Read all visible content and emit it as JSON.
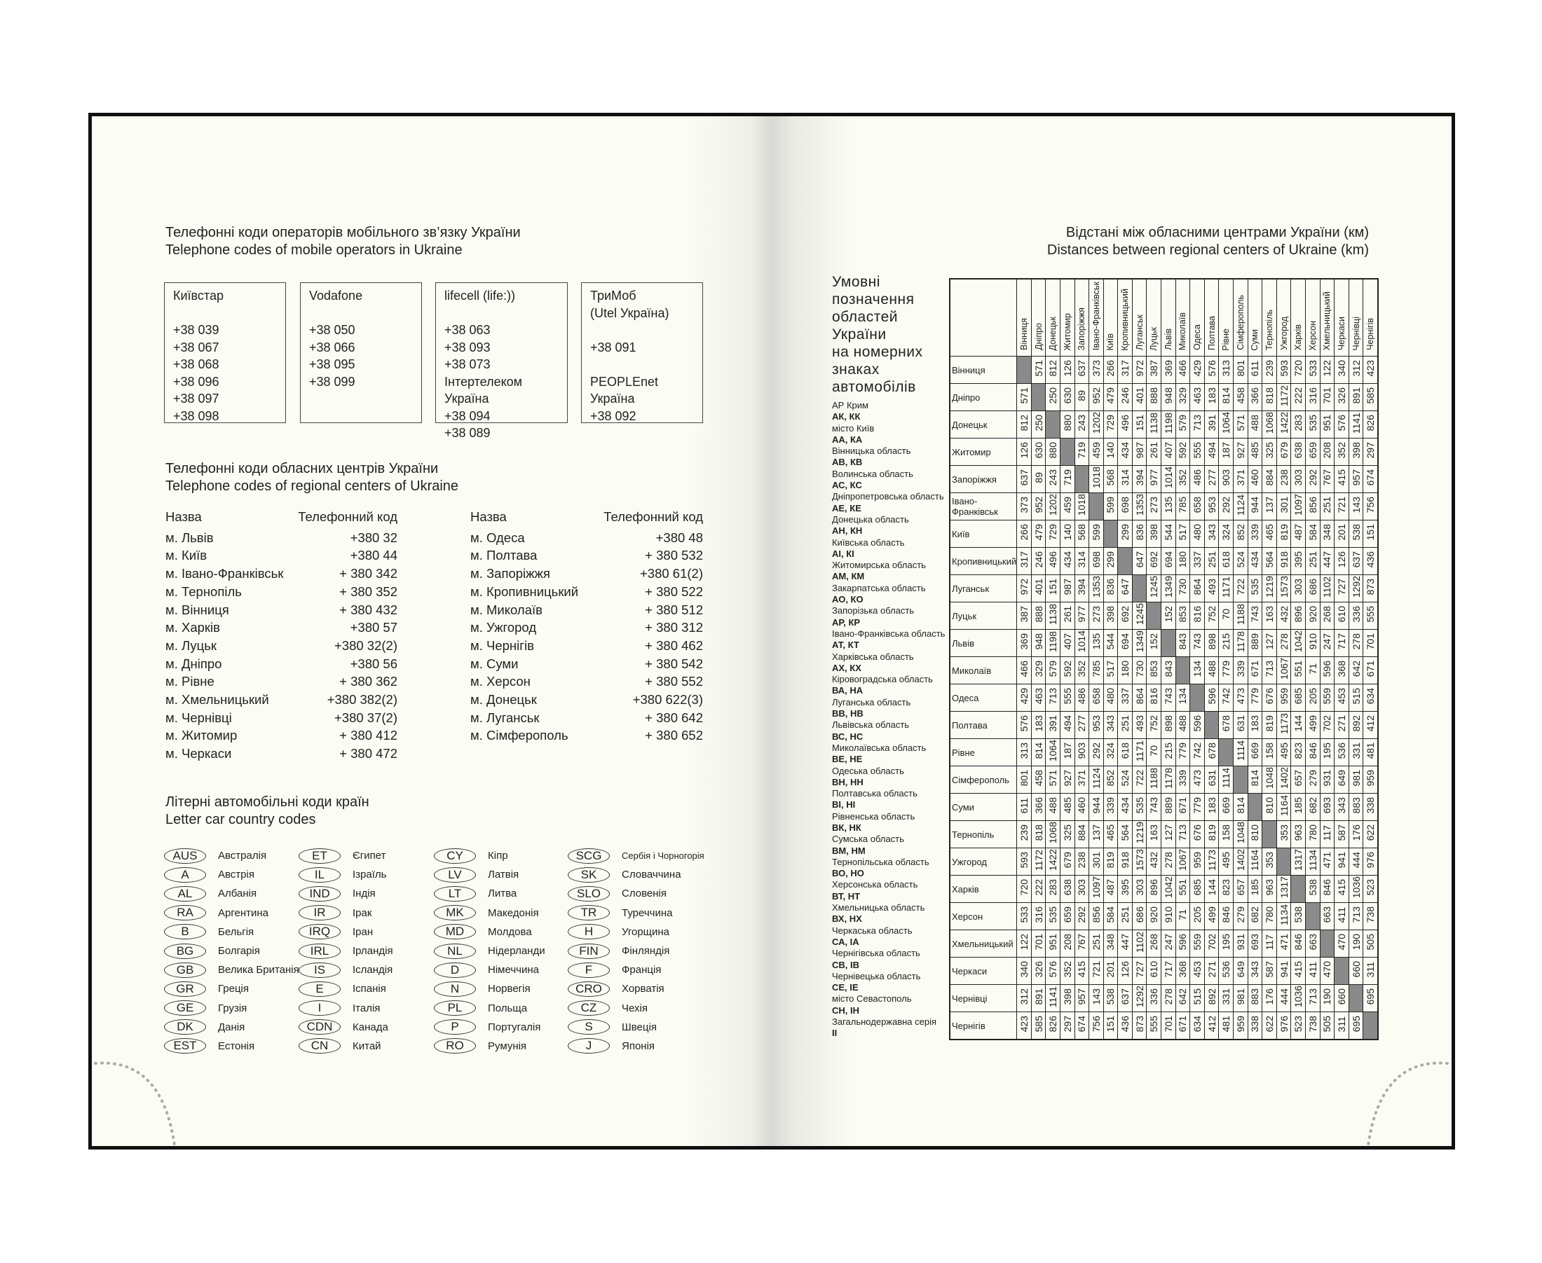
{
  "left": {
    "mobile_title_ua": "Телефонні коди операторів мобільного зв’язку України",
    "mobile_title_en": "Telephone codes of mobile operators in Ukraine",
    "operators": [
      {
        "lines": [
          "Київстар",
          "",
          "+38 039",
          "+38 067",
          "+38 068",
          "+38 096",
          "+38 097",
          "+38 098"
        ]
      },
      {
        "lines": [
          "Vodafone",
          "",
          "+38 050",
          "+38 066",
          "+38 095",
          "+38 099"
        ]
      },
      {
        "lines": [
          "lifecell (life:))",
          "",
          "+38 063",
          "+38 093",
          "+38 073",
          "Інтертелеком Україна",
          "+38 094",
          "+38 089"
        ]
      },
      {
        "lines": [
          "ТриМоб",
          "(Utel Україна)",
          "",
          "+38 091",
          "",
          "PEOPLEnet",
          "Україна",
          "+38 092"
        ]
      }
    ],
    "regional_title_ua": "Телефонні коди обласних центрів України",
    "regional_title_en": "Telephone codes of regional centers of Ukraine",
    "regional_header": {
      "name": "Назва",
      "code": "Телефонний код"
    },
    "regional_left": [
      [
        "м. Львів",
        "+380 32"
      ],
      [
        "м. Київ",
        "+380 44"
      ],
      [
        "м. Івано-Франківськ",
        "+ 380 342"
      ],
      [
        "м. Тернопіль",
        "+ 380 352"
      ],
      [
        "м. Вінниця",
        "+ 380 432"
      ],
      [
        "м. Харків",
        "+380 57"
      ],
      [
        "м. Луцьк",
        "+380 32(2)"
      ],
      [
        "м. Дніпро",
        "+380 56"
      ],
      [
        "м. Рівне",
        "+ 380 362"
      ],
      [
        "м. Хмельницький",
        "+380 382(2)"
      ],
      [
        "м. Чернівці",
        "+380 37(2)"
      ],
      [
        "м. Житомир",
        "+ 380 412"
      ],
      [
        "м. Черкаси",
        "+ 380 472"
      ]
    ],
    "regional_right": [
      [
        "м. Одеса",
        "+380 48"
      ],
      [
        "м. Полтава",
        "+ 380 532"
      ],
      [
        "м. Запоріжжя",
        "+380 61(2)"
      ],
      [
        "м. Кропивницький",
        "+ 380 522"
      ],
      [
        "м. Миколаїв",
        "+ 380 512"
      ],
      [
        "м. Ужгород",
        "+ 380 312"
      ],
      [
        "м. Чернігів",
        "+ 380 462"
      ],
      [
        "м. Суми",
        "+ 380 542"
      ],
      [
        "м. Херсон",
        "+ 380 552"
      ],
      [
        "м. Донецьк",
        "+380 622(3)"
      ],
      [
        "м. Луганськ",
        "+ 380 642"
      ],
      [
        "м. Сімферополь",
        "+ 380 652"
      ]
    ],
    "car_title_ua": "Літерні автомобільні коди країн",
    "car_title_en": "Letter car country codes",
    "car_codes": [
      [
        [
          "AUS",
          "Австралія"
        ],
        [
          "A",
          "Австрія"
        ],
        [
          "AL",
          "Албанія"
        ],
        [
          "RA",
          "Аргентина"
        ],
        [
          "B",
          "Бельгія"
        ],
        [
          "BG",
          "Болгарія"
        ],
        [
          "GB",
          "Велика Британія"
        ],
        [
          "GR",
          "Греція"
        ],
        [
          "GE",
          "Грузія"
        ],
        [
          "DK",
          "Данія"
        ],
        [
          "EST",
          "Естонія"
        ]
      ],
      [
        [
          "ET",
          "Єгипет"
        ],
        [
          "IL",
          "Ізраїль"
        ],
        [
          "IND",
          "Індія"
        ],
        [
          "IR",
          "Ірак"
        ],
        [
          "IRQ",
          "Іран"
        ],
        [
          "IRL",
          "Ірландія"
        ],
        [
          "IS",
          "Ісландія"
        ],
        [
          "E",
          "Іспанія"
        ],
        [
          "I",
          "Італія"
        ],
        [
          "CDN",
          "Канада"
        ],
        [
          "CN",
          "Китай"
        ]
      ],
      [
        [
          "CY",
          "Кіпр"
        ],
        [
          "LV",
          "Латвія"
        ],
        [
          "LT",
          "Литва"
        ],
        [
          "MK",
          "Македонія"
        ],
        [
          "MD",
          "Молдова"
        ],
        [
          "NL",
          "Нідерланди"
        ],
        [
          "D",
          "Німеччина"
        ],
        [
          "N",
          "Норвегія"
        ],
        [
          "PL",
          "Польща"
        ],
        [
          "P",
          "Португалія"
        ],
        [
          "RO",
          "Румунія"
        ]
      ],
      [
        [
          "SCG",
          "Сербія і Чорногорія"
        ],
        [
          "SK",
          "Словаччина"
        ],
        [
          "SLO",
          "Словенія"
        ],
        [
          "TR",
          "Туреччина"
        ],
        [
          "H",
          "Угорщина"
        ],
        [
          "FIN",
          "Фінляндія"
        ],
        [
          "F",
          "Франція"
        ],
        [
          "CRO",
          "Хорватія"
        ],
        [
          "CZ",
          "Чехія"
        ],
        [
          "S",
          "Швеція"
        ],
        [
          "J",
          "Японія"
        ]
      ]
    ]
  },
  "right": {
    "title_ua": "Відстані між обласними центрами України (км)",
    "title_en": "Distances between regional centers of Ukraine (km)",
    "legend_title": [
      "Умовні",
      "позначення",
      "областей",
      "України",
      "на номерних",
      "знаках",
      "автомобілів"
    ],
    "legend": [
      [
        "АР Крим",
        "АК, КК"
      ],
      [
        "місто Київ",
        "АА, КА"
      ],
      [
        "Вінницька область",
        "АВ, КВ"
      ],
      [
        "Волинська область",
        "АС, КС"
      ],
      [
        "Дніпропетровська область",
        "АЕ, КЕ"
      ],
      [
        "Донецька область",
        "АН, КН"
      ],
      [
        "Київська область",
        "АІ, КІ"
      ],
      [
        "Житомирська область",
        "АМ, КМ"
      ],
      [
        "Закарпатська область",
        "АО, КО"
      ],
      [
        "Запорізька область",
        "АР, КР"
      ],
      [
        "Івано-Франківська область",
        "АТ, КТ"
      ],
      [
        "Харківська область",
        "АХ, КХ"
      ],
      [
        "Кіровоградська область",
        "ВА, НА"
      ],
      [
        "Луганська область",
        "ВВ, НВ"
      ],
      [
        "Львівська область",
        "ВС, НС"
      ],
      [
        "Миколаївська область",
        "ВЕ, НЕ"
      ],
      [
        "Одеська область",
        "ВН, НН"
      ],
      [
        "Полтавська область",
        "ВІ, НІ"
      ],
      [
        "Рівненська область",
        "ВК, НК"
      ],
      [
        "Сумська область",
        "ВМ, НМ"
      ],
      [
        "Тернопільська область",
        "ВО, НО"
      ],
      [
        "Херсонська область",
        "ВТ, НТ"
      ],
      [
        "Хмельницька область",
        "ВХ, НХ"
      ],
      [
        "Черкаська область",
        "СА, ІА"
      ],
      [
        "Чернігівська область",
        "СВ, ІВ"
      ],
      [
        "Чернівецька область",
        "СЕ, ІЕ"
      ],
      [
        "місто Севастополь",
        "СН, ІН"
      ],
      [
        "Загальнодержавна серія",
        "ІІ"
      ]
    ],
    "cities": [
      "Вінниця",
      "Дніпро",
      "Донецьк",
      "Житомир",
      "Запоріжжя",
      "Івано-Франківськ",
      "Київ",
      "Кропивницький",
      "Луганськ",
      "Луцьк",
      "Львів",
      "Миколаїв",
      "Одеса",
      "Полтава",
      "Рівне",
      "Сімферополь",
      "Суми",
      "Тернопіль",
      "Ужгород",
      "Харків",
      "Херсон",
      "Хмельницький",
      "Черкаси",
      "Чернівці",
      "Чернігів"
    ],
    "row_labels": [
      "Вінниця",
      "Дніпро",
      "Донецьк",
      "Житомир",
      "Запоріжжя",
      "Івано- Франківськ",
      "Київ",
      "Кропивницький",
      "Луганськ",
      "Луцьк",
      "Львів",
      "Миколаїв",
      "Одеса",
      "Полтава",
      "Рівне",
      "Сімферополь",
      "Суми",
      "Тернопіль",
      "Ужгород",
      "Харків",
      "Херсон",
      "Хмельницький",
      "Черкаси",
      "Чернівці",
      "Чернігів"
    ],
    "distances": [
      [
        null,
        571,
        812,
        126,
        637,
        373,
        266,
        317,
        972,
        387,
        369,
        466,
        429,
        576,
        313,
        801,
        611,
        239,
        593,
        720,
        533,
        122,
        340,
        312,
        423
      ],
      [
        571,
        null,
        250,
        630,
        89,
        952,
        479,
        246,
        401,
        888,
        948,
        329,
        463,
        183,
        814,
        458,
        366,
        818,
        1172,
        222,
        316,
        701,
        326,
        891,
        585
      ],
      [
        812,
        250,
        null,
        880,
        243,
        1202,
        729,
        496,
        151,
        1138,
        1198,
        579,
        713,
        391,
        1064,
        571,
        488,
        1068,
        1422,
        283,
        535,
        951,
        576,
        1141,
        826
      ],
      [
        126,
        630,
        880,
        null,
        719,
        459,
        140,
        434,
        987,
        261,
        407,
        592,
        555,
        494,
        187,
        927,
        485,
        325,
        679,
        638,
        659,
        208,
        352,
        398,
        297
      ],
      [
        637,
        89,
        243,
        719,
        null,
        1018,
        568,
        314,
        394,
        977,
        1014,
        352,
        486,
        277,
        903,
        371,
        460,
        884,
        238,
        303,
        292,
        767,
        415,
        957,
        674
      ],
      [
        373,
        952,
        1202,
        459,
        1018,
        null,
        599,
        698,
        1353,
        273,
        135,
        785,
        658,
        953,
        292,
        1124,
        944,
        137,
        301,
        1097,
        856,
        251,
        721,
        143,
        756
      ],
      [
        266,
        479,
        729,
        140,
        568,
        599,
        null,
        299,
        836,
        398,
        544,
        517,
        480,
        343,
        324,
        852,
        339,
        465,
        819,
        487,
        584,
        348,
        201,
        538,
        151
      ],
      [
        317,
        246,
        496,
        434,
        314,
        698,
        299,
        null,
        647,
        692,
        694,
        180,
        337,
        251,
        618,
        524,
        434,
        564,
        918,
        395,
        251,
        447,
        126,
        637,
        436
      ],
      [
        972,
        401,
        151,
        987,
        394,
        1353,
        836,
        647,
        null,
        1245,
        1349,
        730,
        864,
        493,
        1171,
        722,
        535,
        1219,
        1573,
        303,
        686,
        1102,
        727,
        1292,
        873
      ],
      [
        387,
        888,
        1138,
        261,
        977,
        273,
        398,
        692,
        1245,
        null,
        152,
        853,
        816,
        752,
        70,
        1188,
        743,
        163,
        432,
        896,
        920,
        268,
        610,
        336,
        555
      ],
      [
        369,
        948,
        1198,
        407,
        1014,
        135,
        544,
        694,
        1349,
        152,
        null,
        843,
        743,
        898,
        215,
        1178,
        889,
        127,
        278,
        1042,
        910,
        247,
        717,
        278,
        701
      ],
      [
        466,
        329,
        579,
        592,
        352,
        785,
        517,
        180,
        730,
        853,
        843,
        null,
        134,
        488,
        779,
        339,
        671,
        713,
        1067,
        551,
        71,
        596,
        368,
        642,
        671
      ],
      [
        429,
        463,
        713,
        555,
        486,
        658,
        480,
        337,
        864,
        816,
        743,
        134,
        null,
        596,
        742,
        473,
        779,
        676,
        959,
        685,
        205,
        559,
        453,
        515,
        634
      ],
      [
        576,
        183,
        391,
        494,
        277,
        953,
        343,
        251,
        493,
        752,
        898,
        488,
        596,
        null,
        678,
        631,
        183,
        819,
        1173,
        144,
        499,
        702,
        271,
        892,
        412
      ],
      [
        313,
        814,
        1064,
        187,
        903,
        292,
        324,
        618,
        1171,
        70,
        215,
        779,
        742,
        678,
        null,
        1114,
        669,
        158,
        495,
        823,
        846,
        195,
        536,
        331,
        481
      ],
      [
        801,
        458,
        571,
        927,
        371,
        1124,
        852,
        524,
        722,
        1188,
        1178,
        339,
        473,
        631,
        1114,
        null,
        814,
        1048,
        1402,
        657,
        279,
        931,
        649,
        981,
        959
      ],
      [
        611,
        366,
        488,
        485,
        460,
        944,
        339,
        434,
        535,
        743,
        889,
        671,
        779,
        183,
        669,
        814,
        null,
        810,
        1164,
        185,
        682,
        693,
        343,
        883,
        338
      ],
      [
        239,
        818,
        1068,
        325,
        884,
        137,
        465,
        564,
        1219,
        163,
        127,
        713,
        676,
        819,
        158,
        1048,
        810,
        null,
        353,
        963,
        780,
        117,
        587,
        176,
        622
      ],
      [
        593,
        1172,
        1422,
        679,
        238,
        301,
        819,
        918,
        1573,
        432,
        278,
        1067,
        959,
        1173,
        495,
        1402,
        1164,
        353,
        null,
        1317,
        1134,
        471,
        941,
        444,
        976
      ],
      [
        720,
        222,
        283,
        638,
        303,
        1097,
        487,
        395,
        303,
        896,
        1042,
        551,
        685,
        144,
        823,
        657,
        185,
        963,
        1317,
        null,
        538,
        846,
        415,
        1036,
        523
      ],
      [
        533,
        316,
        535,
        659,
        292,
        856,
        584,
        251,
        686,
        920,
        910,
        71,
        205,
        499,
        846,
        279,
        682,
        780,
        1134,
        538,
        null,
        663,
        411,
        713,
        738
      ],
      [
        122,
        701,
        951,
        208,
        767,
        251,
        348,
        447,
        1102,
        268,
        247,
        596,
        559,
        702,
        195,
        931,
        693,
        117,
        471,
        846,
        663,
        null,
        470,
        190,
        505
      ],
      [
        340,
        326,
        576,
        352,
        415,
        721,
        201,
        126,
        727,
        610,
        717,
        368,
        453,
        271,
        536,
        649,
        343,
        587,
        941,
        415,
        411,
        470,
        null,
        660,
        311
      ],
      [
        312,
        891,
        1141,
        398,
        957,
        143,
        538,
        637,
        1292,
        336,
        278,
        642,
        515,
        892,
        331,
        981,
        883,
        176,
        444,
        1036,
        713,
        190,
        660,
        null,
        695
      ],
      [
        423,
        585,
        826,
        297,
        674,
        756,
        151,
        436,
        873,
        555,
        701,
        671,
        634,
        412,
        481,
        959,
        338,
        622,
        976,
        523,
        738,
        505,
        311,
        695,
        null
      ]
    ]
  }
}
